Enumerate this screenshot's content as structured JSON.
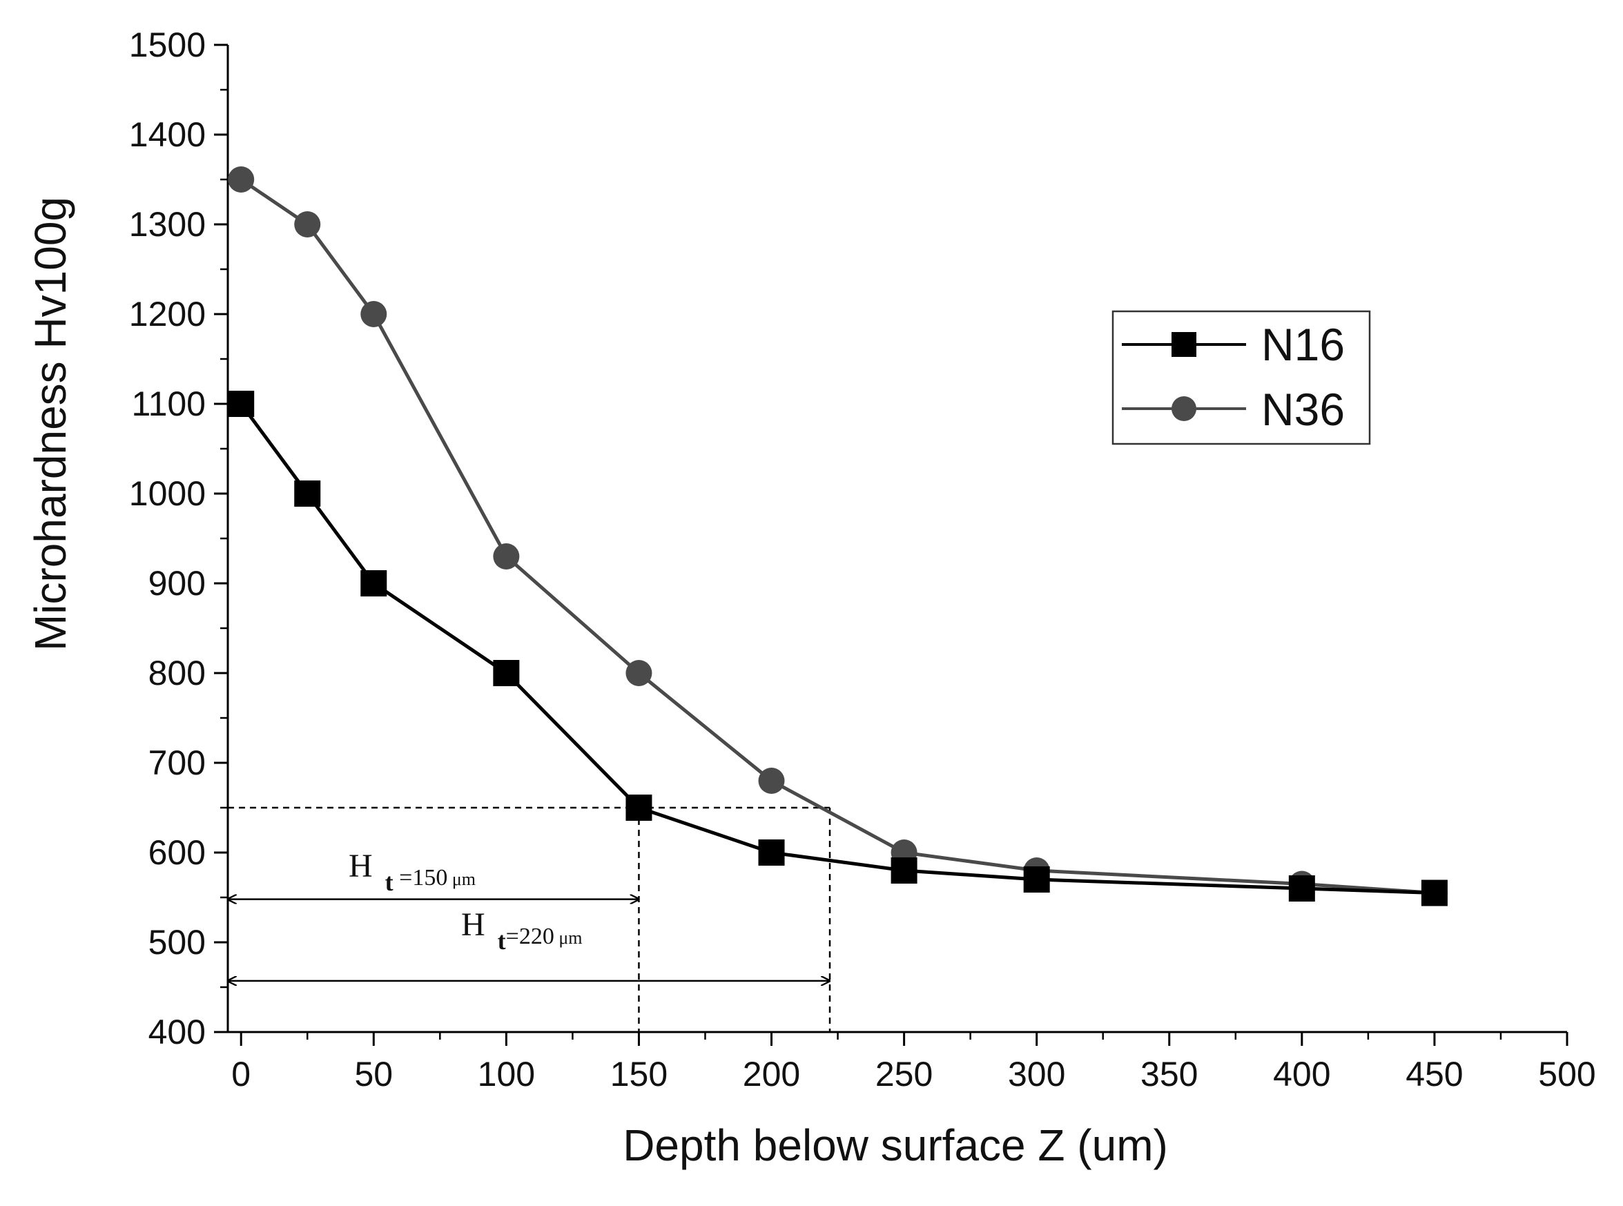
{
  "chart_data": {
    "type": "line",
    "title": "",
    "xlabel": "Depth below surface Z (um)",
    "ylabel": "Microhardness Hv100g",
    "xlim": [
      -5,
      500
    ],
    "ylim": [
      400,
      1500
    ],
    "x_ticks": [
      0,
      50,
      100,
      150,
      200,
      250,
      300,
      350,
      400,
      450,
      500
    ],
    "y_ticks": [
      400,
      500,
      600,
      700,
      800,
      900,
      1000,
      1100,
      1200,
      1300,
      1400,
      1500
    ],
    "x_tick_labels": [
      "0",
      "50",
      "100",
      "150",
      "200",
      "250",
      "300",
      "350",
      "400",
      "450",
      "500"
    ],
    "y_tick_labels": [
      "400",
      "500",
      "600",
      "700",
      "800",
      "900",
      "1000",
      "1100",
      "1200",
      "1300",
      "1400",
      "1500"
    ],
    "legend_position": "upper-right",
    "series": [
      {
        "name": "N16",
        "marker": "square",
        "color": "#000000",
        "x": [
          0,
          25,
          50,
          100,
          150,
          200,
          250,
          300,
          400,
          450
        ],
        "y": [
          1100,
          1000,
          900,
          800,
          650,
          600,
          580,
          570,
          560,
          555
        ]
      },
      {
        "name": "N36",
        "marker": "circle",
        "color": "#4a4a4a",
        "x": [
          0,
          25,
          50,
          100,
          150,
          200,
          250,
          300,
          400,
          450
        ],
        "y": [
          1350,
          1300,
          1200,
          930,
          800,
          680,
          600,
          580,
          565,
          555
        ]
      }
    ],
    "reference_lines": {
      "hardness_level": 650,
      "depths": [
        150,
        222
      ]
    },
    "annotations": [
      {
        "main": "H",
        "sub": "t",
        "value": " =150",
        "unit": " μm",
        "arrow_from": -5,
        "arrow_to": 150,
        "arrow_y": 548
      },
      {
        "main": "H",
        "sub": "t",
        "value": "=220",
        "unit": " μm",
        "arrow_from": -5,
        "arrow_to": 222,
        "arrow_y": 457
      }
    ]
  }
}
